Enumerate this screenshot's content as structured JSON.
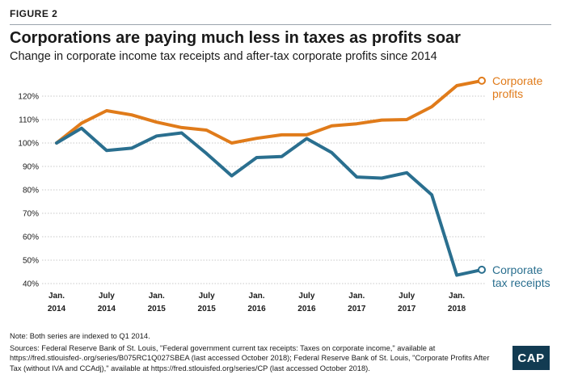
{
  "figure_label": "FIGURE 2",
  "notes": {
    "note": "Note: Both series are indexed to Q1 2014.",
    "sources": "Sources: Federal Reserve Bank of St. Louis, \"Federal government current tax receipts: Taxes on corporate income,\" available at https://fred.stlouisfed-.org/series/B075RC1Q027SBEA (last accessed October 2018); Federal Reserve Bank of St. Louis, \"Corporate Profits After Tax (without IVA and CCAdj),\" available at https://fred.stlouisfed.org/series/CP (last accessed October 2018)."
  },
  "logo_text": "CAP",
  "colors": {
    "profits": "#e07b1a",
    "receipts": "#2a6f8f",
    "grid": "#c8c8c8",
    "rule": "#9aa4ad"
  },
  "chart_data": {
    "type": "line",
    "title": "Corporations are paying much less in taxes as profits soar",
    "subtitle": "Change in corporate income tax receipts and after-tax corporate profits since 2014",
    "x_labels": [
      {
        "index": 0,
        "line1": "Jan.",
        "line2": "2014"
      },
      {
        "index": 2,
        "line1": "July",
        "line2": "2014"
      },
      {
        "index": 4,
        "line1": "Jan.",
        "line2": "2015"
      },
      {
        "index": 6,
        "line1": "July",
        "line2": "2015"
      },
      {
        "index": 8,
        "line1": "Jan.",
        "line2": "2016"
      },
      {
        "index": 10,
        "line1": "July",
        "line2": "2016"
      },
      {
        "index": 12,
        "line1": "Jan.",
        "line2": "2017"
      },
      {
        "index": 14,
        "line1": "July",
        "line2": "2017"
      },
      {
        "index": 16,
        "line1": "Jan.",
        "line2": "2018"
      }
    ],
    "quarters": [
      "2014 Q1",
      "2014 Q2",
      "2014 Q3",
      "2014 Q4",
      "2015 Q1",
      "2015 Q2",
      "2015 Q3",
      "2015 Q4",
      "2016 Q1",
      "2016 Q2",
      "2016 Q3",
      "2016 Q4",
      "2017 Q1",
      "2017 Q2",
      "2017 Q3",
      "2017 Q4",
      "2018 Q1",
      "2018 Q2"
    ],
    "y_ticks": [
      "40%",
      "50%",
      "60%",
      "70%",
      "80%",
      "90%",
      "100%",
      "110%",
      "120%"
    ],
    "ylim": [
      40,
      120
    ],
    "grid": "horizontal",
    "series": [
      {
        "name": "Corporate profits",
        "label_lines": [
          "Corporate",
          "profits"
        ],
        "color": "#e07b1a",
        "values": [
          100,
          108.5,
          113.8,
          112,
          108.9,
          106.6,
          105.5,
          100,
          102,
          103.5,
          103.5,
          107.3,
          108.2,
          109.8,
          110,
          115.5,
          124.5,
          126.6
        ]
      },
      {
        "name": "Corporate tax receipts",
        "label_lines": [
          "Corporate",
          "tax receipts"
        ],
        "color": "#2a6f8f",
        "values": [
          100,
          106.3,
          96.8,
          97.8,
          103,
          104.3,
          95.5,
          86,
          93.8,
          94.2,
          101.9,
          95.9,
          85.5,
          85,
          87.3,
          77.9,
          43.6,
          45.9
        ]
      }
    ]
  }
}
